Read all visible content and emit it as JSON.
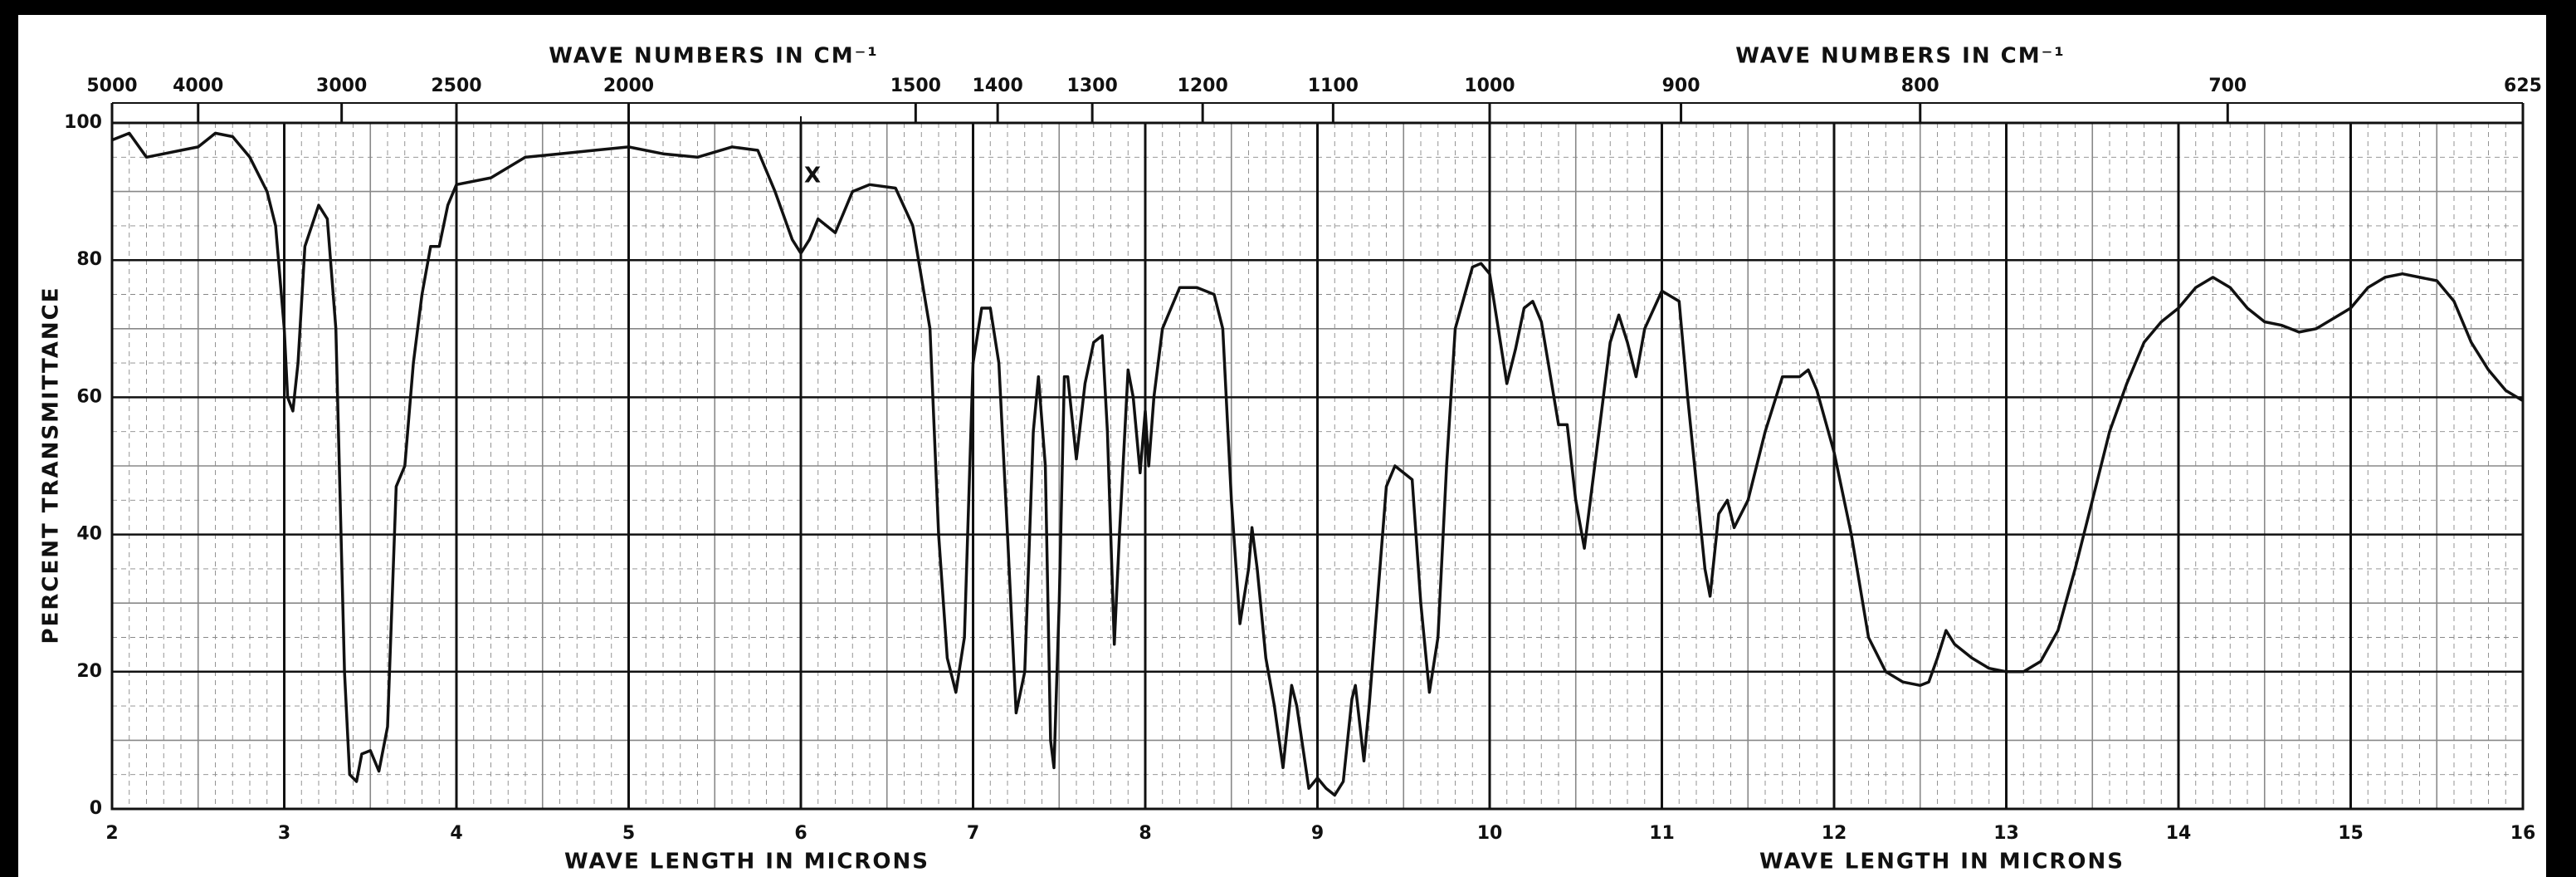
{
  "chart_data": {
    "type": "line",
    "y_label": "PERCENT TRANSMITTANCE",
    "x_labels": [
      "WAVE LENGTH IN MICRONS",
      "WAVE LENGTH IN MICRONS"
    ],
    "x2_labels": [
      "WAVE NUMBERS IN CM⁻¹",
      "WAVE NUMBERS IN CM⁻¹"
    ],
    "annotation": "X",
    "color": "#111111",
    "grid": true,
    "minor_divisions": [
      10,
      4
    ],
    "xlim": [
      2,
      16
    ],
    "xticks": [
      2,
      3,
      4,
      5,
      6,
      7,
      8,
      9,
      10,
      11,
      12,
      13,
      14,
      15,
      16
    ],
    "ylim": [
      0,
      100
    ],
    "yticks": [
      0,
      20,
      40,
      60,
      80,
      100
    ],
    "x2_scale": "reciprocal",
    "x2ticks": [
      5000,
      4000,
      3000,
      2500,
      2000,
      1500,
      1400,
      1300,
      1200,
      1100,
      1000,
      900,
      800,
      700,
      625
    ],
    "x": [
      2.0,
      2.1,
      2.2,
      2.3,
      2.4,
      2.5,
      2.6,
      2.7,
      2.8,
      2.9,
      2.95,
      3.0,
      3.02,
      3.05,
      3.08,
      3.12,
      3.2,
      3.25,
      3.3,
      3.35,
      3.38,
      3.42,
      3.45,
      3.5,
      3.55,
      3.6,
      3.65,
      3.7,
      3.75,
      3.8,
      3.85,
      3.9,
      3.95,
      4.0,
      4.2,
      4.4,
      4.6,
      4.8,
      5.0,
      5.2,
      5.4,
      5.6,
      5.75,
      5.85,
      5.95,
      6.0,
      6.05,
      6.1,
      6.2,
      6.3,
      6.4,
      6.55,
      6.65,
      6.75,
      6.8,
      6.85,
      6.9,
      6.95,
      7.0,
      7.05,
      7.1,
      7.15,
      7.2,
      7.25,
      7.3,
      7.35,
      7.38,
      7.42,
      7.45,
      7.47,
      7.5,
      7.53,
      7.55,
      7.6,
      7.65,
      7.7,
      7.75,
      7.78,
      7.82,
      7.85,
      7.9,
      7.93,
      7.97,
      8.0,
      8.02,
      8.05,
      8.1,
      8.2,
      8.3,
      8.4,
      8.45,
      8.5,
      8.55,
      8.6,
      8.62,
      8.65,
      8.7,
      8.75,
      8.8,
      8.85,
      8.88,
      8.95,
      9.0,
      9.05,
      9.1,
      9.15,
      9.2,
      9.22,
      9.27,
      9.3,
      9.4,
      9.45,
      9.55,
      9.6,
      9.65,
      9.7,
      9.75,
      9.8,
      9.9,
      9.95,
      10.0,
      10.05,
      10.1,
      10.15,
      10.2,
      10.25,
      10.3,
      10.4,
      10.45,
      10.5,
      10.55,
      10.6,
      10.65,
      10.7,
      10.75,
      10.8,
      10.85,
      10.9,
      11.0,
      11.1,
      11.15,
      11.25,
      11.28,
      11.33,
      11.38,
      11.42,
      11.5,
      11.6,
      11.7,
      11.8,
      11.85,
      11.9,
      12.0,
      12.1,
      12.2,
      12.3,
      12.4,
      12.5,
      12.55,
      12.6,
      12.65,
      12.7,
      12.8,
      12.9,
      13.0,
      13.1,
      13.2,
      13.3,
      13.4,
      13.5,
      13.6,
      13.7,
      13.8,
      13.9,
      14.0,
      14.1,
      14.2,
      14.3,
      14.4,
      14.5,
      14.6,
      14.7,
      14.8,
      14.9,
      15.0,
      15.1,
      15.2,
      15.3,
      15.4,
      15.5,
      15.6,
      15.7,
      15.8,
      15.9,
      16.0
    ],
    "values": [
      97.5,
      98.5,
      95,
      95.5,
      96,
      96.5,
      98.5,
      98,
      95,
      90,
      85,
      70,
      60,
      58,
      65,
      82,
      88,
      86,
      70,
      20,
      5,
      4,
      8,
      8.5,
      5.5,
      12,
      47,
      50,
      65,
      75,
      82,
      82,
      88,
      91,
      92,
      95,
      95.5,
      96,
      96.5,
      95.5,
      95,
      96.5,
      96,
      90,
      83,
      81,
      83,
      86,
      84,
      90,
      91,
      90.5,
      85,
      70,
      40,
      22,
      17,
      25,
      65,
      73,
      73,
      65,
      40,
      14,
      20,
      55,
      63,
      50,
      10,
      6,
      30,
      63,
      63,
      51,
      62,
      68,
      69,
      55,
      24,
      40,
      64,
      60,
      49,
      58,
      50,
      60,
      70,
      76,
      76,
      75,
      70,
      45,
      27,
      35,
      41,
      35,
      22,
      15,
      6,
      18,
      15,
      3,
      4.5,
      3,
      2,
      4,
      16,
      18,
      7,
      15,
      47,
      50,
      48,
      30,
      17,
      25,
      50,
      70,
      79,
      79.5,
      78,
      70,
      62,
      67,
      73,
      74,
      71,
      56,
      56,
      45,
      38,
      48,
      58,
      68,
      72,
      68,
      63,
      70,
      75.5,
      74,
      60,
      35,
      31,
      43,
      45,
      41,
      45,
      55,
      63,
      63,
      64,
      61,
      52,
      40,
      25,
      20,
      18.5,
      18,
      18.5,
      22,
      26,
      24,
      22,
      20.5,
      20,
      20,
      21.5,
      26,
      35,
      45,
      55,
      62,
      68,
      71,
      73,
      76,
      77.5,
      76,
      73,
      71,
      70.5,
      69.5,
      70,
      71.5,
      73,
      76,
      77.5,
      78,
      77.5,
      77,
      74,
      68,
      64,
      61,
      59.5
    ]
  }
}
